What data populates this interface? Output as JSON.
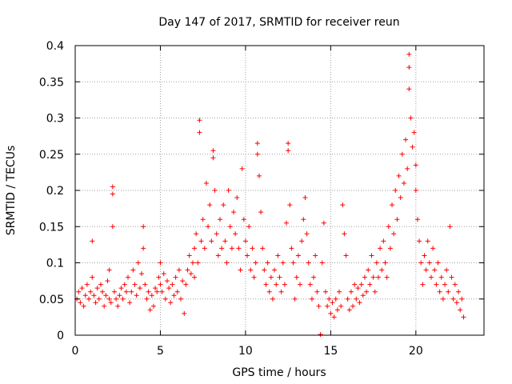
{
  "chart_data": {
    "type": "scatter",
    "title": "Day 147 of 2017, SRMTID for receiver reun",
    "xlabel": "GPS time / hours",
    "ylabel": "SRMTID / TECUs",
    "xlim": [
      0,
      24
    ],
    "ylim": [
      0,
      0.4
    ],
    "xticks": [
      0,
      5,
      10,
      15,
      20
    ],
    "yticks": [
      0,
      0.05,
      0.1,
      0.15,
      0.2,
      0.25,
      0.3,
      0.35,
      0.4
    ],
    "xtick_labels": [
      "0",
      "5",
      "10",
      "15",
      "20"
    ],
    "ytick_labels": [
      "0",
      "0.05",
      "0.1",
      "0.15",
      "0.2",
      "0.25",
      "0.3",
      "0.35",
      "0.4"
    ],
    "grid": true,
    "marker": "+",
    "color": "#ff0000",
    "series": [
      {
        "name": "SRMTID",
        "points": [
          [
            0.1,
            0.05
          ],
          [
            0.2,
            0.06
          ],
          [
            0.3,
            0.045
          ],
          [
            0.4,
            0.065
          ],
          [
            0.5,
            0.04
          ],
          [
            0.6,
            0.055
          ],
          [
            0.7,
            0.07
          ],
          [
            0.8,
            0.05
          ],
          [
            0.9,
            0.06
          ],
          [
            1.0,
            0.08
          ],
          [
            1.0,
            0.13
          ],
          [
            1.1,
            0.055
          ],
          [
            1.2,
            0.045
          ],
          [
            1.3,
            0.065
          ],
          [
            1.4,
            0.05
          ],
          [
            1.5,
            0.07
          ],
          [
            1.6,
            0.06
          ],
          [
            1.7,
            0.04
          ],
          [
            1.8,
            0.055
          ],
          [
            1.9,
            0.075
          ],
          [
            2.0,
            0.05
          ],
          [
            2.0,
            0.09
          ],
          [
            2.1,
            0.045
          ],
          [
            2.2,
            0.15
          ],
          [
            2.2,
            0.195
          ],
          [
            2.2,
            0.205
          ],
          [
            2.3,
            0.06
          ],
          [
            2.4,
            0.05
          ],
          [
            2.5,
            0.04
          ],
          [
            2.6,
            0.055
          ],
          [
            2.7,
            0.065
          ],
          [
            2.8,
            0.05
          ],
          [
            2.9,
            0.07
          ],
          [
            3.0,
            0.06
          ],
          [
            3.1,
            0.08
          ],
          [
            3.2,
            0.045
          ],
          [
            3.3,
            0.06
          ],
          [
            3.4,
            0.09
          ],
          [
            3.5,
            0.07
          ],
          [
            3.6,
            0.055
          ],
          [
            3.7,
            0.1
          ],
          [
            3.8,
            0.065
          ],
          [
            3.9,
            0.085
          ],
          [
            4.0,
            0.12
          ],
          [
            4.0,
            0.15
          ],
          [
            4.1,
            0.07
          ],
          [
            4.2,
            0.05
          ],
          [
            4.3,
            0.06
          ],
          [
            4.4,
            0.035
          ],
          [
            4.5,
            0.055
          ],
          [
            4.6,
            0.04
          ],
          [
            4.7,
            0.065
          ],
          [
            4.8,
            0.06
          ],
          [
            4.9,
            0.08
          ],
          [
            5.0,
            0.07
          ],
          [
            5.0,
            0.1
          ],
          [
            5.1,
            0.06
          ],
          [
            5.2,
            0.085
          ],
          [
            5.3,
            0.05
          ],
          [
            5.4,
            0.075
          ],
          [
            5.5,
            0.065
          ],
          [
            5.6,
            0.045
          ],
          [
            5.7,
            0.07
          ],
          [
            5.8,
            0.055
          ],
          [
            5.9,
            0.08
          ],
          [
            6.0,
            0.06
          ],
          [
            6.1,
            0.09
          ],
          [
            6.2,
            0.05
          ],
          [
            6.3,
            0.075
          ],
          [
            6.4,
            0.03
          ],
          [
            6.5,
            0.07
          ],
          [
            6.6,
            0.09
          ],
          [
            6.7,
            0.11
          ],
          [
            6.8,
            0.085
          ],
          [
            6.9,
            0.1
          ],
          [
            7.0,
            0.12
          ],
          [
            7.0,
            0.08
          ],
          [
            7.1,
            0.14
          ],
          [
            7.2,
            0.1
          ],
          [
            7.3,
            0.28
          ],
          [
            7.3,
            0.297
          ],
          [
            7.4,
            0.13
          ],
          [
            7.5,
            0.16
          ],
          [
            7.6,
            0.12
          ],
          [
            7.7,
            0.21
          ],
          [
            7.8,
            0.15
          ],
          [
            7.9,
            0.18
          ],
          [
            8.0,
            0.13
          ],
          [
            8.1,
            0.245
          ],
          [
            8.1,
            0.255
          ],
          [
            8.2,
            0.2
          ],
          [
            8.3,
            0.14
          ],
          [
            8.4,
            0.11
          ],
          [
            8.5,
            0.16
          ],
          [
            8.6,
            0.12
          ],
          [
            8.7,
            0.18
          ],
          [
            8.8,
            0.13
          ],
          [
            8.9,
            0.1
          ],
          [
            9.0,
            0.2
          ],
          [
            9.1,
            0.15
          ],
          [
            9.2,
            0.12
          ],
          [
            9.3,
            0.17
          ],
          [
            9.4,
            0.14
          ],
          [
            9.5,
            0.19
          ],
          [
            9.6,
            0.12
          ],
          [
            9.7,
            0.09
          ],
          [
            9.8,
            0.23
          ],
          [
            9.9,
            0.16
          ],
          [
            10.0,
            0.13
          ],
          [
            10.1,
            0.11
          ],
          [
            10.2,
            0.15
          ],
          [
            10.3,
            0.09
          ],
          [
            10.4,
            0.12
          ],
          [
            10.5,
            0.08
          ],
          [
            10.6,
            0.1
          ],
          [
            10.7,
            0.265
          ],
          [
            10.7,
            0.25
          ],
          [
            10.8,
            0.22
          ],
          [
            10.9,
            0.17
          ],
          [
            11.0,
            0.12
          ],
          [
            11.1,
            0.09
          ],
          [
            11.2,
            0.07
          ],
          [
            11.3,
            0.1
          ],
          [
            11.4,
            0.06
          ],
          [
            11.5,
            0.08
          ],
          [
            11.6,
            0.05
          ],
          [
            11.7,
            0.09
          ],
          [
            11.8,
            0.07
          ],
          [
            11.9,
            0.11
          ],
          [
            12.0,
            0.08
          ],
          [
            12.1,
            0.06
          ],
          [
            12.2,
            0.1
          ],
          [
            12.3,
            0.07
          ],
          [
            12.4,
            0.155
          ],
          [
            12.5,
            0.255
          ],
          [
            12.5,
            0.265
          ],
          [
            12.6,
            0.18
          ],
          [
            12.7,
            0.12
          ],
          [
            12.8,
            0.1
          ],
          [
            12.9,
            0.05
          ],
          [
            13.0,
            0.08
          ],
          [
            13.1,
            0.11
          ],
          [
            13.2,
            0.07
          ],
          [
            13.3,
            0.13
          ],
          [
            13.4,
            0.16
          ],
          [
            13.5,
            0.19
          ],
          [
            13.6,
            0.14
          ],
          [
            13.7,
            0.1
          ],
          [
            13.8,
            0.07
          ],
          [
            13.9,
            0.05
          ],
          [
            14.0,
            0.08
          ],
          [
            14.1,
            0.11
          ],
          [
            14.2,
            0.06
          ],
          [
            14.3,
            0.04
          ],
          [
            14.4,
            0.001
          ],
          [
            14.5,
            0.1
          ],
          [
            14.6,
            0.155
          ],
          [
            14.7,
            0.06
          ],
          [
            14.8,
            0.04
          ],
          [
            14.9,
            0.05
          ],
          [
            15.0,
            0.03
          ],
          [
            15.1,
            0.045
          ],
          [
            15.2,
            0.025
          ],
          [
            15.3,
            0.05
          ],
          [
            15.4,
            0.035
          ],
          [
            15.5,
            0.06
          ],
          [
            15.6,
            0.04
          ],
          [
            15.7,
            0.18
          ],
          [
            15.8,
            0.14
          ],
          [
            15.9,
            0.11
          ],
          [
            16.0,
            0.05
          ],
          [
            16.1,
            0.035
          ],
          [
            16.2,
            0.06
          ],
          [
            16.3,
            0.04
          ],
          [
            16.4,
            0.07
          ],
          [
            16.5,
            0.05
          ],
          [
            16.6,
            0.065
          ],
          [
            16.7,
            0.045
          ],
          [
            16.8,
            0.07
          ],
          [
            16.9,
            0.055
          ],
          [
            17.0,
            0.08
          ],
          [
            17.1,
            0.06
          ],
          [
            17.2,
            0.09
          ],
          [
            17.3,
            0.07
          ],
          [
            17.4,
            0.11
          ],
          [
            17.5,
            0.08
          ],
          [
            17.6,
            0.06
          ],
          [
            17.7,
            0.1
          ],
          [
            17.8,
            0.08
          ],
          [
            17.9,
            0.12
          ],
          [
            18.0,
            0.09
          ],
          [
            18.1,
            0.13
          ],
          [
            18.2,
            0.1
          ],
          [
            18.3,
            0.08
          ],
          [
            18.4,
            0.15
          ],
          [
            18.5,
            0.12
          ],
          [
            18.6,
            0.18
          ],
          [
            18.7,
            0.14
          ],
          [
            18.8,
            0.2
          ],
          [
            18.9,
            0.16
          ],
          [
            19.0,
            0.22
          ],
          [
            19.1,
            0.19
          ],
          [
            19.2,
            0.25
          ],
          [
            19.3,
            0.21
          ],
          [
            19.4,
            0.27
          ],
          [
            19.5,
            0.23
          ],
          [
            19.6,
            0.34
          ],
          [
            19.6,
            0.37
          ],
          [
            19.6,
            0.388
          ],
          [
            19.7,
            0.3
          ],
          [
            19.8,
            0.26
          ],
          [
            19.9,
            0.28
          ],
          [
            20.0,
            0.235
          ],
          [
            20.0,
            0.2
          ],
          [
            20.1,
            0.16
          ],
          [
            20.2,
            0.13
          ],
          [
            20.3,
            0.1
          ],
          [
            20.4,
            0.07
          ],
          [
            20.5,
            0.11
          ],
          [
            20.6,
            0.09
          ],
          [
            20.7,
            0.13
          ],
          [
            20.8,
            0.1
          ],
          [
            20.9,
            0.08
          ],
          [
            21.0,
            0.12
          ],
          [
            21.1,
            0.09
          ],
          [
            21.2,
            0.07
          ],
          [
            21.3,
            0.1
          ],
          [
            21.4,
            0.06
          ],
          [
            21.5,
            0.08
          ],
          [
            21.6,
            0.05
          ],
          [
            21.7,
            0.07
          ],
          [
            21.8,
            0.09
          ],
          [
            21.9,
            0.06
          ],
          [
            22.0,
            0.15
          ],
          [
            22.1,
            0.08
          ],
          [
            22.2,
            0.05
          ],
          [
            22.3,
            0.07
          ],
          [
            22.4,
            0.045
          ],
          [
            22.5,
            0.06
          ],
          [
            22.6,
            0.035
          ],
          [
            22.7,
            0.05
          ],
          [
            22.8,
            0.025
          ]
        ]
      }
    ]
  }
}
